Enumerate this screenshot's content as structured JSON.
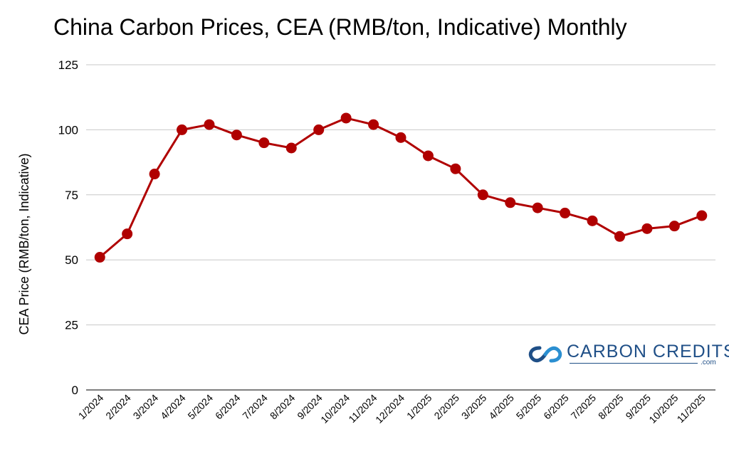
{
  "chart_data": {
    "type": "line",
    "title": "China Carbon Prices, CEA (RMB/ton, Indicative) Monthly",
    "xlabel": "",
    "ylabel": "CEA Price (RMB/ton, Indicative)",
    "ylim": [
      0,
      125
    ],
    "yticks": [
      0,
      25,
      50,
      75,
      100,
      125
    ],
    "grid": true,
    "categories": [
      "1/2024",
      "2/2024",
      "3/2024",
      "4/2024",
      "5/2024",
      "6/2024",
      "7/2024",
      "8/2024",
      "9/2024",
      "10/2024",
      "11/2024",
      "12/2024",
      "1/2025",
      "2/2025",
      "3/2025",
      "4/2025",
      "5/2025",
      "6/2025",
      "7/2025",
      "8/2025",
      "9/2025",
      "10/2025",
      "11/2025"
    ],
    "series": [
      {
        "values": [
          51,
          60,
          83,
          100,
          102,
          98,
          95,
          93,
          100,
          104.5,
          102,
          97,
          90,
          85,
          75,
          72,
          70,
          68,
          65,
          59,
          62,
          63,
          67
        ],
        "color": "#b00000"
      }
    ]
  },
  "brand": {
    "name": "CARBON CREDITS",
    "sub": ".com",
    "icon": "linked-loops-logo",
    "color": "#1f4f87"
  }
}
